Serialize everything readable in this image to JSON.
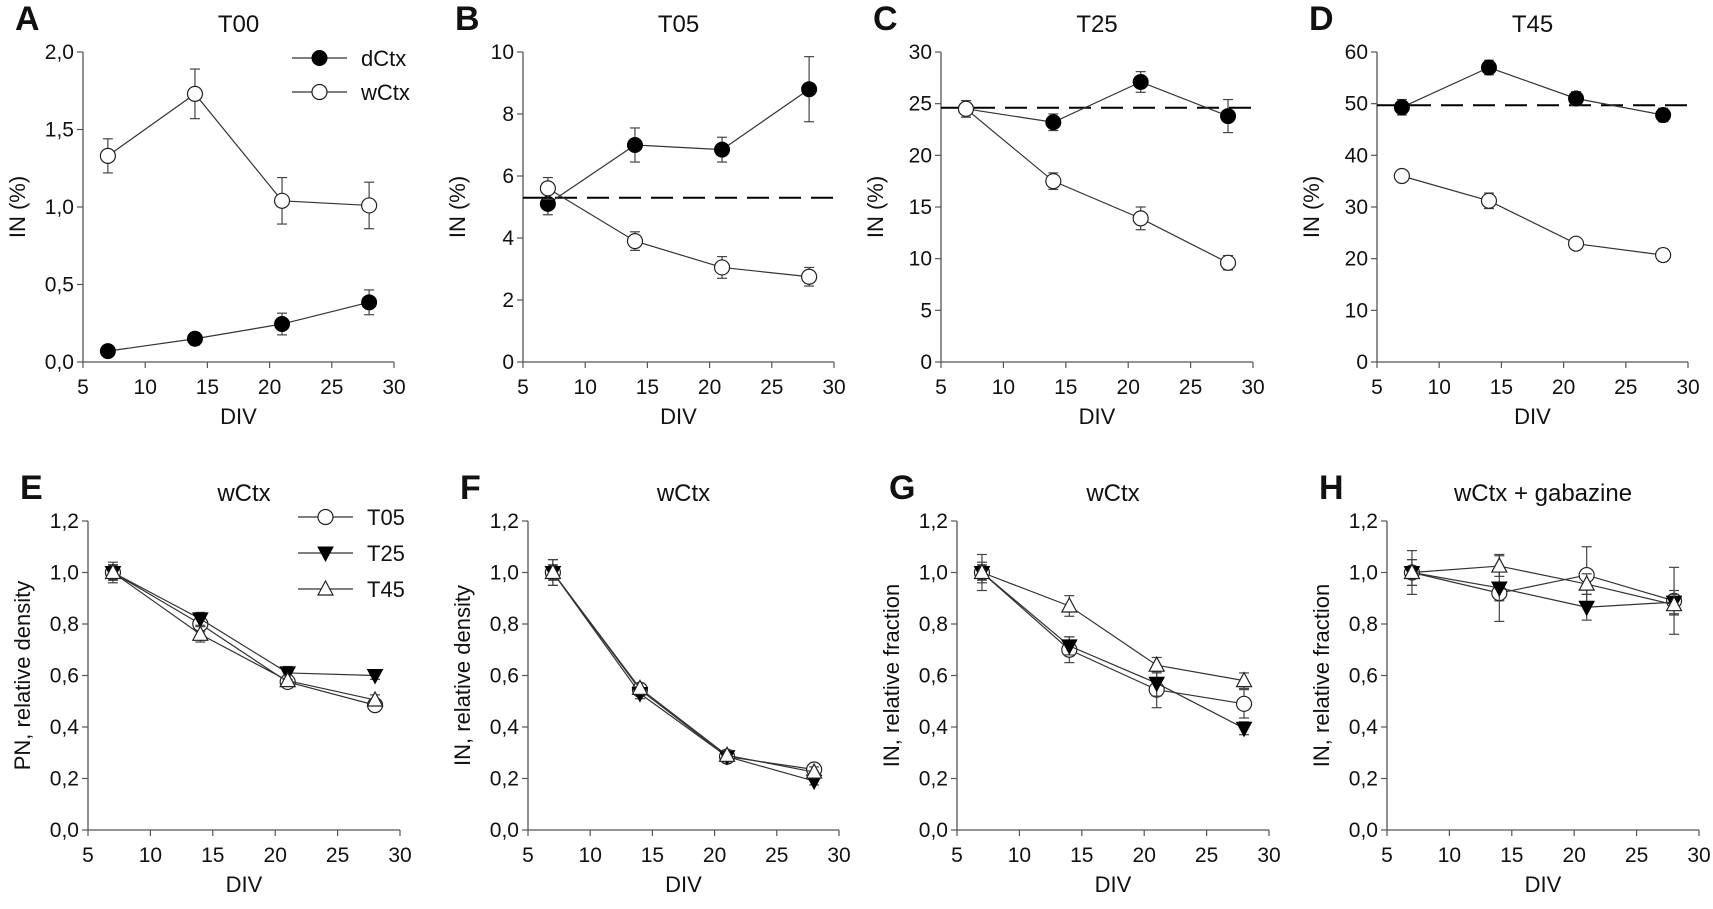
{
  "chart_data": [
    {
      "panel": "A",
      "type": "line",
      "title": "T00",
      "xlabel": "DIV",
      "ylabel": "IN (%)",
      "xlim": [
        5,
        30
      ],
      "xticks": [
        5,
        10,
        15,
        20,
        25,
        30
      ],
      "xtick_labels": [
        "5",
        "10",
        "15",
        "20",
        "25",
        "30"
      ],
      "ylim": [
        0,
        2
      ],
      "yticks": [
        0,
        0.5,
        1,
        1.5,
        2
      ],
      "ytick_labels": [
        "0,0",
        "0,5",
        "1,0",
        "1,5",
        "2,0"
      ],
      "legend": "top-right",
      "reference_line": null,
      "x": [
        7,
        14,
        21,
        28
      ],
      "series": [
        {
          "name": "dCtx",
          "marker": "filled-circle",
          "values": [
            0.07,
            0.15,
            0.245,
            0.385
          ],
          "error": [
            0.02,
            0.04,
            0.07,
            0.08
          ]
        },
        {
          "name": "wCtx",
          "marker": "open-circle",
          "values": [
            1.33,
            1.73,
            1.04,
            1.01
          ],
          "error": [
            0.11,
            0.16,
            0.15,
            0.15
          ]
        }
      ]
    },
    {
      "panel": "B",
      "type": "line",
      "title": "T05",
      "xlabel": "DIV",
      "ylabel": "IN (%)",
      "xlim": [
        5,
        30
      ],
      "xticks": [
        5,
        10,
        15,
        20,
        25,
        30
      ],
      "xtick_labels": [
        "5",
        "10",
        "15",
        "20",
        "25",
        "30"
      ],
      "ylim": [
        0,
        10
      ],
      "yticks": [
        0,
        2,
        4,
        6,
        8,
        10
      ],
      "ytick_labels": [
        "0",
        "2",
        "4",
        "6",
        "8",
        "10"
      ],
      "reference_line": 5.3,
      "x": [
        7,
        14,
        21,
        28
      ],
      "series": [
        {
          "marker": "filled-circle",
          "values": [
            5.1,
            7.0,
            6.85,
            8.8
          ],
          "error": [
            0.35,
            0.55,
            0.4,
            1.05
          ]
        },
        {
          "marker": "open-circle",
          "values": [
            5.6,
            3.9,
            3.05,
            2.75
          ],
          "error": [
            0.35,
            0.3,
            0.35,
            0.3
          ]
        }
      ]
    },
    {
      "panel": "C",
      "type": "line",
      "title": "T25",
      "xlabel": "DIV",
      "ylabel": "IN (%)",
      "xlim": [
        5,
        30
      ],
      "xticks": [
        5,
        10,
        15,
        20,
        25,
        30
      ],
      "xtick_labels": [
        "5",
        "10",
        "15",
        "20",
        "25",
        "30"
      ],
      "ylim": [
        0,
        30
      ],
      "yticks": [
        0,
        5,
        10,
        15,
        20,
        25,
        30
      ],
      "ytick_labels": [
        "0",
        "5",
        "10",
        "15",
        "20",
        "25",
        "30"
      ],
      "reference_line": 24.6,
      "x": [
        7,
        14,
        21,
        28
      ],
      "series": [
        {
          "marker": "filled-circle",
          "values": [
            24.5,
            23.2,
            27.1,
            23.8
          ],
          "error": [
            0.8,
            0.8,
            1.0,
            1.6
          ]
        },
        {
          "marker": "open-circle",
          "values": [
            24.5,
            17.5,
            13.9,
            9.6
          ],
          "error": [
            0.8,
            0.8,
            1.1,
            0.7
          ]
        }
      ]
    },
    {
      "panel": "D",
      "type": "line",
      "title": "T45",
      "xlabel": "DIV",
      "ylabel": "IN (%)",
      "xlim": [
        5,
        30
      ],
      "xticks": [
        5,
        10,
        15,
        20,
        25,
        30
      ],
      "xtick_labels": [
        "5",
        "10",
        "15",
        "20",
        "25",
        "30"
      ],
      "ylim": [
        0,
        60
      ],
      "yticks": [
        0,
        10,
        20,
        30,
        40,
        50,
        60
      ],
      "ytick_labels": [
        "0",
        "10",
        "20",
        "30",
        "40",
        "50",
        "60"
      ],
      "reference_line": 49.7,
      "x": [
        7,
        14,
        21,
        28
      ],
      "series": [
        {
          "marker": "filled-circle",
          "values": [
            49.3,
            57.0,
            51.0,
            47.8
          ],
          "error": [
            1.5,
            1.4,
            1.3,
            1.3
          ]
        },
        {
          "marker": "open-circle",
          "values": [
            36.0,
            31.2,
            22.9,
            20.7
          ],
          "error": [
            1.0,
            1.5,
            1.1,
            1.2
          ]
        }
      ]
    },
    {
      "panel": "E",
      "type": "line",
      "title": "wCtx",
      "xlabel": "DIV",
      "ylabel": "PN, relative density",
      "xlim": [
        5,
        30
      ],
      "xticks": [
        5,
        10,
        15,
        20,
        25,
        30
      ],
      "xtick_labels": [
        "5",
        "10",
        "15",
        "20",
        "25",
        "30"
      ],
      "ylim": [
        0,
        1.2
      ],
      "yticks": [
        0,
        0.2,
        0.4,
        0.6,
        0.8,
        1,
        1.2
      ],
      "ytick_labels": [
        "0,0",
        "0,2",
        "0,4",
        "0,6",
        "0,8",
        "1,0",
        "1,2"
      ],
      "legend": "top-right",
      "reference_line": null,
      "x": [
        7,
        14,
        21,
        28
      ],
      "series": [
        {
          "name": "T05",
          "marker": "open-circle",
          "values": [
            1.0,
            0.8,
            0.575,
            0.485
          ],
          "error": [
            0.03,
            0.03,
            0.02,
            0.01
          ]
        },
        {
          "name": "T25",
          "marker": "filled-triangle-down",
          "values": [
            1.0,
            0.82,
            0.61,
            0.6
          ],
          "error": [
            0.03,
            0.025,
            0.025,
            0.015
          ]
        },
        {
          "name": "T45",
          "marker": "open-triangle-up",
          "values": [
            1.0,
            0.76,
            0.58,
            0.505
          ],
          "error": [
            0.04,
            0.03,
            0.02,
            0.02
          ]
        }
      ]
    },
    {
      "panel": "F",
      "type": "line",
      "title": "wCtx",
      "xlabel": "DIV",
      "ylabel": "IN, relative density",
      "xlim": [
        5,
        30
      ],
      "xticks": [
        5,
        10,
        15,
        20,
        25,
        30
      ],
      "xtick_labels": [
        "5",
        "10",
        "15",
        "20",
        "25",
        "30"
      ],
      "ylim": [
        0,
        1.2
      ],
      "yticks": [
        0,
        0.2,
        0.4,
        0.6,
        0.8,
        1,
        1.2
      ],
      "ytick_labels": [
        "0,0",
        "0,2",
        "0,4",
        "0,6",
        "0,8",
        "1,0",
        "1,2"
      ],
      "reference_line": null,
      "x": [
        7,
        14,
        21,
        28
      ],
      "series": [
        {
          "marker": "open-circle",
          "values": [
            1.0,
            0.545,
            0.285,
            0.235
          ],
          "error": [
            0.05,
            0.02,
            0.02,
            0.02
          ]
        },
        {
          "marker": "filled-triangle-down",
          "values": [
            1.0,
            0.53,
            0.285,
            0.19
          ],
          "error": [
            0.03,
            0.02,
            0.02,
            0.015
          ]
        },
        {
          "marker": "open-triangle-up",
          "values": [
            1.0,
            0.55,
            0.29,
            0.225
          ],
          "error": [
            0.05,
            0.02,
            0.02,
            0.02
          ]
        }
      ]
    },
    {
      "panel": "G",
      "type": "line",
      "title": "wCtx",
      "xlabel": "DIV",
      "ylabel": "IN, relative fraction",
      "xlim": [
        5,
        30
      ],
      "xticks": [
        5,
        10,
        15,
        20,
        25,
        30
      ],
      "xtick_labels": [
        "5",
        "10",
        "15",
        "20",
        "25",
        "30"
      ],
      "ylim": [
        0,
        1.2
      ],
      "yticks": [
        0,
        0.2,
        0.4,
        0.6,
        0.8,
        1,
        1.2
      ],
      "ytick_labels": [
        "0,0",
        "0,2",
        "0,4",
        "0,6",
        "0,8",
        "1,0",
        "1,2"
      ],
      "reference_line": null,
      "x": [
        7,
        14,
        21,
        28
      ],
      "series": [
        {
          "marker": "open-circle",
          "values": [
            1.0,
            0.7,
            0.545,
            0.49
          ],
          "error": [
            0.04,
            0.05,
            0.07,
            0.055
          ]
        },
        {
          "marker": "filled-triangle-down",
          "values": [
            1.0,
            0.715,
            0.57,
            0.395
          ],
          "error": [
            0.03,
            0.035,
            0.05,
            0.025
          ]
        },
        {
          "marker": "open-triangle-up",
          "values": [
            1.0,
            0.87,
            0.64,
            0.58
          ],
          "error": [
            0.07,
            0.04,
            0.03,
            0.03
          ]
        }
      ]
    },
    {
      "panel": "H",
      "type": "line",
      "title": "wCtx + gabazine",
      "xlabel": "DIV",
      "ylabel": "IN, relative fraction",
      "xlim": [
        5,
        30
      ],
      "xticks": [
        5,
        10,
        15,
        20,
        25,
        30
      ],
      "xtick_labels": [
        "5",
        "10",
        "15",
        "20",
        "25",
        "30"
      ],
      "ylim": [
        0,
        1.2
      ],
      "yticks": [
        0,
        0.2,
        0.4,
        0.6,
        0.8,
        1,
        1.2
      ],
      "ytick_labels": [
        "0,0",
        "0,2",
        "0,4",
        "0,6",
        "0,8",
        "1,0",
        "1,2"
      ],
      "reference_line": null,
      "x": [
        7,
        14,
        21,
        28
      ],
      "series": [
        {
          "marker": "open-circle",
          "values": [
            1.0,
            0.92,
            0.99,
            0.89
          ],
          "error": [
            0.05,
            0.03,
            0.11,
            0.13
          ]
        },
        {
          "marker": "filled-triangle-down",
          "values": [
            1.0,
            0.94,
            0.865,
            0.885
          ],
          "error": [
            0.05,
            0.13,
            0.05,
            0.045
          ]
        },
        {
          "marker": "open-triangle-up",
          "values": [
            1.0,
            1.025,
            0.955,
            0.875
          ],
          "error": [
            0.085,
            0.04,
            0.04,
            0.04
          ]
        }
      ]
    }
  ],
  "colors": {
    "line": "#333333",
    "marker_fill": "#000000",
    "axis": "#555555"
  }
}
